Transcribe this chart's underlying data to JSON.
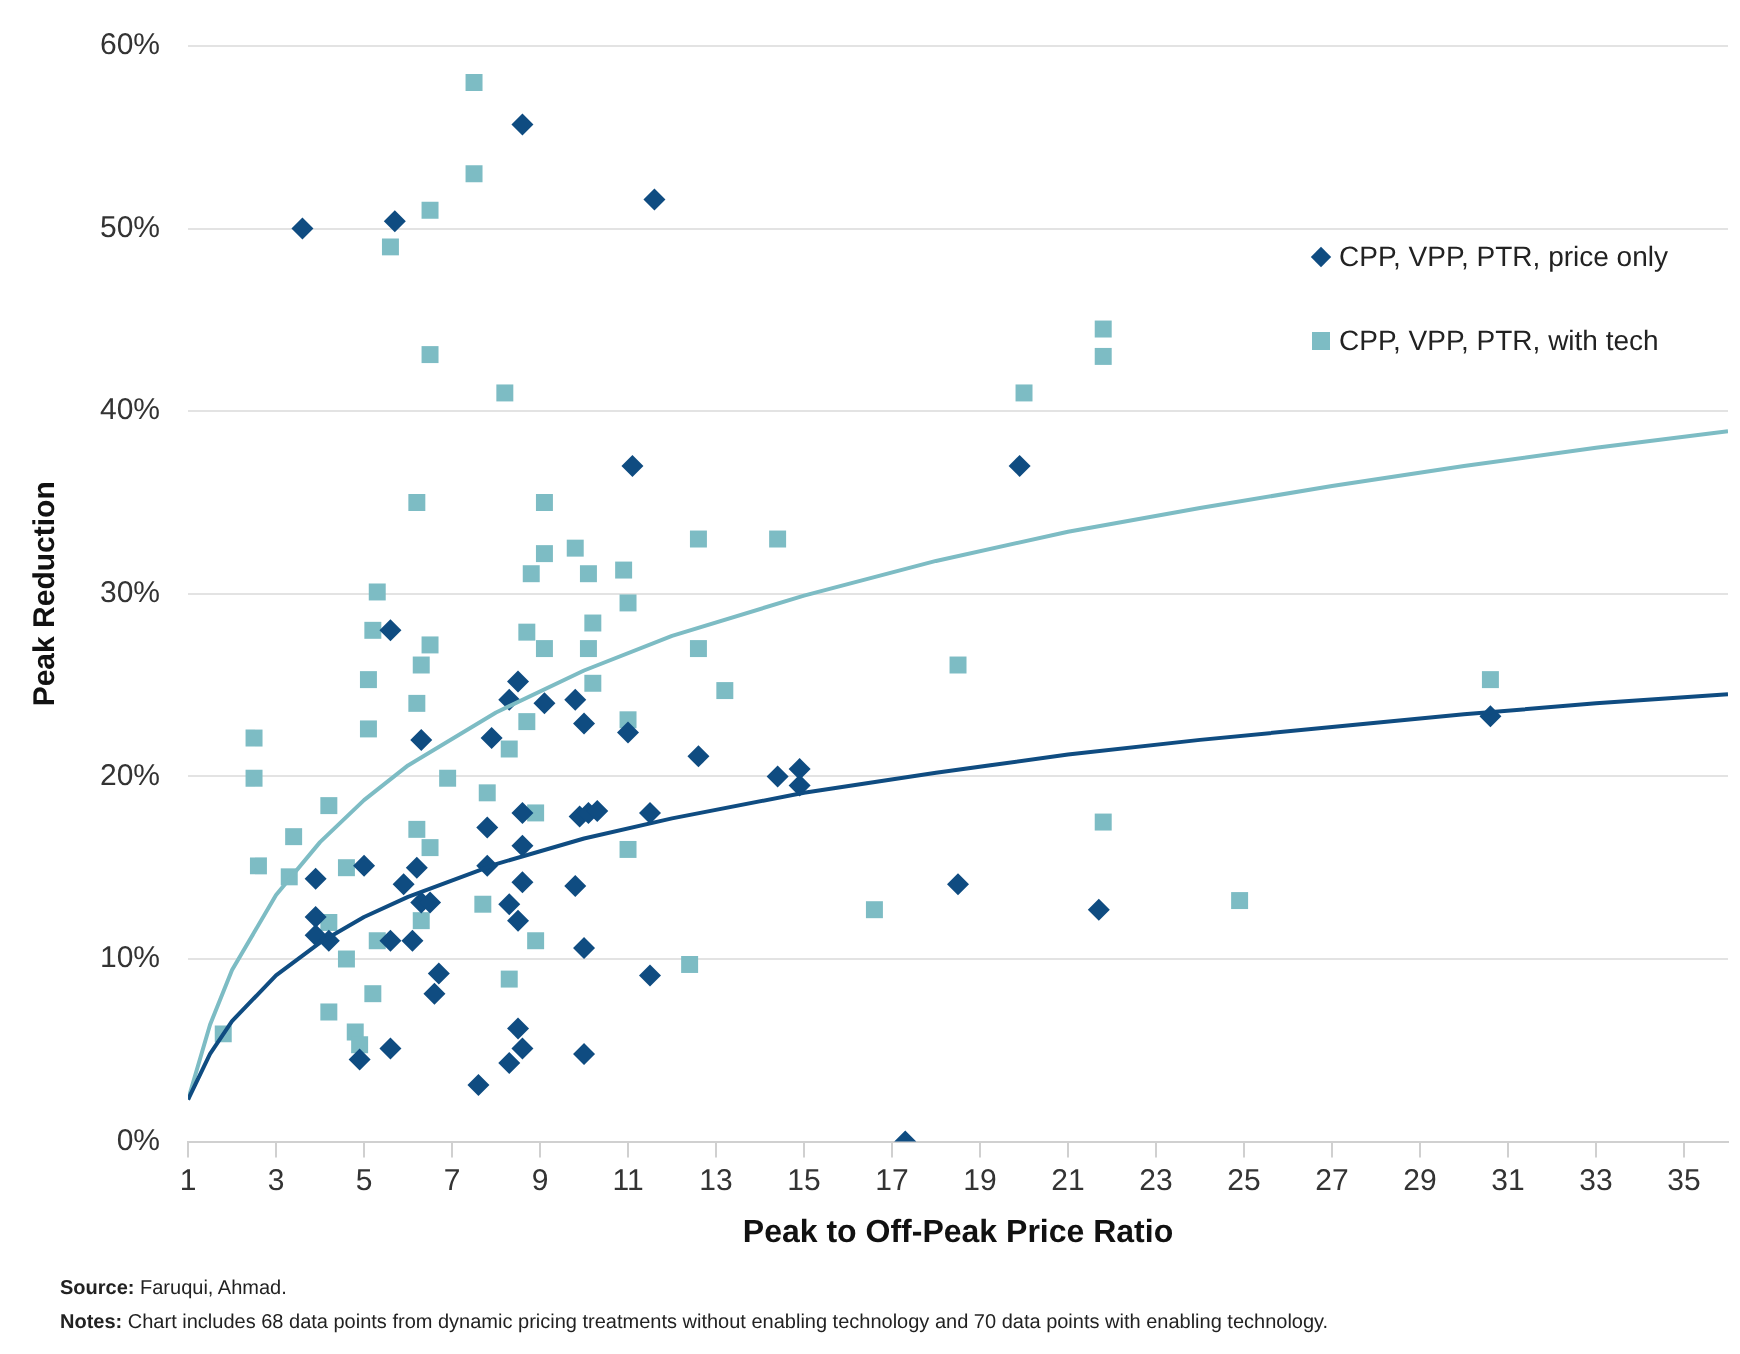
{
  "chart_data": {
    "type": "scatter",
    "xlabel": "Peak to Off-Peak Price Ratio",
    "ylabel": "Peak Reduction",
    "xlim": [
      1,
      36
    ],
    "xticks": [
      1,
      3,
      5,
      7,
      9,
      11,
      13,
      15,
      17,
      19,
      21,
      23,
      25,
      27,
      29,
      31,
      33,
      35
    ],
    "ylim": [
      0,
      60
    ],
    "yticks": [
      {
        "value": 0,
        "label": "0%"
      },
      {
        "value": 10,
        "label": "10%"
      },
      {
        "value": 20,
        "label": "20%"
      },
      {
        "value": 30,
        "label": "30%"
      },
      {
        "value": 40,
        "label": "40%"
      },
      {
        "value": 50,
        "label": "50%"
      },
      {
        "value": 60,
        "label": "60%"
      }
    ],
    "grid": "y",
    "legend": "top right",
    "series": [
      {
        "name": "CPP, VPP, PTR, price only",
        "marker": "diamond",
        "color": "#0f4c81",
        "x": [
          3.6,
          5.7,
          8.6,
          11.6,
          11.1,
          19.9,
          18.5,
          21.7,
          17.3,
          11.0,
          12.6,
          14.4,
          14.9,
          14.9,
          11.5,
          11.5,
          30.6,
          5.6,
          8.5,
          8.3,
          9.1,
          9.8,
          10.0,
          6.3,
          7.9,
          8.6,
          9.9,
          10.1,
          10.3,
          7.8,
          8.6,
          7.8,
          5.0,
          3.9,
          6.2,
          5.9,
          8.6,
          9.8,
          6.3,
          6.5,
          8.3,
          8.5,
          3.9,
          3.9,
          4.2,
          5.6,
          6.1,
          10.0,
          6.7,
          6.6,
          8.5,
          8.6,
          8.3,
          10.0,
          5.6,
          4.9,
          7.6
        ],
        "values": [
          50.0,
          50.4,
          55.7,
          51.6,
          37.0,
          37.0,
          14.1,
          12.7,
          0,
          22.4,
          21.1,
          20.0,
          20.4,
          19.5,
          18.0,
          9.1,
          23.3,
          28.0,
          25.2,
          24.2,
          24.0,
          24.2,
          22.9,
          22.0,
          22.1,
          18.0,
          17.8,
          18.0,
          18.1,
          17.2,
          16.2,
          15.1,
          15.1,
          14.4,
          15.0,
          14.1,
          14.2,
          14.0,
          13.1,
          13.1,
          13.0,
          12.1,
          12.3,
          11.3,
          11.0,
          11.0,
          11.0,
          10.6,
          9.2,
          8.1,
          6.2,
          5.1,
          4.3,
          4.8,
          5.1,
          4.5,
          3.1
        ]
      },
      {
        "name": "CPP, VPP, PTR, with tech",
        "marker": "square",
        "color": "#7dbcc4",
        "x": [
          7.5,
          7.5,
          6.5,
          5.6,
          6.5,
          8.2,
          6.2,
          9.1,
          9.1,
          9.8,
          8.8,
          10.1,
          10.9,
          20.0,
          21.8,
          21.8,
          12.6,
          14.4,
          11.0,
          12.6,
          18.5,
          13.2,
          11.0,
          21.8,
          11.0,
          16.6,
          12.4,
          24.9,
          30.6,
          5.3,
          5.2,
          8.7,
          9.1,
          10.2,
          10.1,
          6.5,
          6.3,
          6.2,
          5.1,
          5.1,
          10.2,
          8.7,
          8.3,
          2.5,
          2.5,
          6.9,
          7.8,
          8.9,
          4.2,
          3.4,
          6.2,
          6.5,
          2.6,
          3.3,
          4.6,
          7.7,
          6.3,
          4.2,
          8.9,
          5.3,
          4.6,
          5.2,
          8.3,
          4.2,
          4.8,
          4.9,
          1.8
        ],
        "values": [
          58.0,
          53.0,
          51.0,
          49.0,
          43.1,
          41.0,
          35.0,
          35.0,
          32.2,
          32.5,
          31.1,
          31.1,
          31.3,
          41.0,
          44.5,
          43.0,
          33.0,
          33.0,
          29.5,
          27.0,
          26.1,
          24.7,
          23.1,
          17.5,
          16.0,
          12.7,
          9.7,
          13.2,
          25.3,
          30.1,
          28.0,
          27.9,
          27.0,
          28.4,
          27.0,
          27.2,
          26.1,
          24.0,
          25.3,
          22.6,
          25.1,
          23.0,
          21.5,
          22.1,
          19.9,
          19.9,
          19.1,
          18.0,
          18.4,
          16.7,
          17.1,
          16.1,
          15.1,
          14.5,
          15.0,
          13.0,
          12.1,
          12.0,
          11.0,
          11.0,
          10.0,
          8.1,
          8.9,
          7.1,
          6.0,
          5.3,
          5.9
        ]
      },
      {
        "type": "line",
        "marker": "none",
        "color": "#0f4c81",
        "x": [
          1,
          1.5,
          2,
          3,
          4,
          5,
          6,
          8,
          10,
          12,
          15,
          18,
          21,
          24,
          27,
          30,
          33,
          36
        ],
        "values": [
          2.3,
          4.8,
          6.6,
          9.1,
          10.9,
          12.3,
          13.4,
          15.2,
          16.6,
          17.7,
          19.1,
          20.2,
          21.2,
          22.0,
          22.7,
          23.4,
          24.0,
          24.5
        ]
      },
      {
        "type": "line",
        "marker": "none",
        "color": "#7dbcc4",
        "x": [
          1,
          1.5,
          2,
          3,
          4,
          5,
          6,
          8,
          10,
          12,
          15,
          18,
          21,
          24,
          27,
          30,
          33,
          36
        ],
        "values": [
          2.3,
          6.4,
          9.4,
          13.5,
          16.4,
          18.7,
          20.6,
          23.5,
          25.8,
          27.7,
          29.9,
          31.8,
          33.4,
          34.7,
          35.9,
          37.0,
          38.0,
          38.9
        ]
      }
    ],
    "annotations": [
      "Source: Faruqui, Ahmad.",
      "Notes: Chart includes 68 data points from dynamic pricing treatments without enabling technology and 70 data points with enabling technology."
    ]
  }
}
